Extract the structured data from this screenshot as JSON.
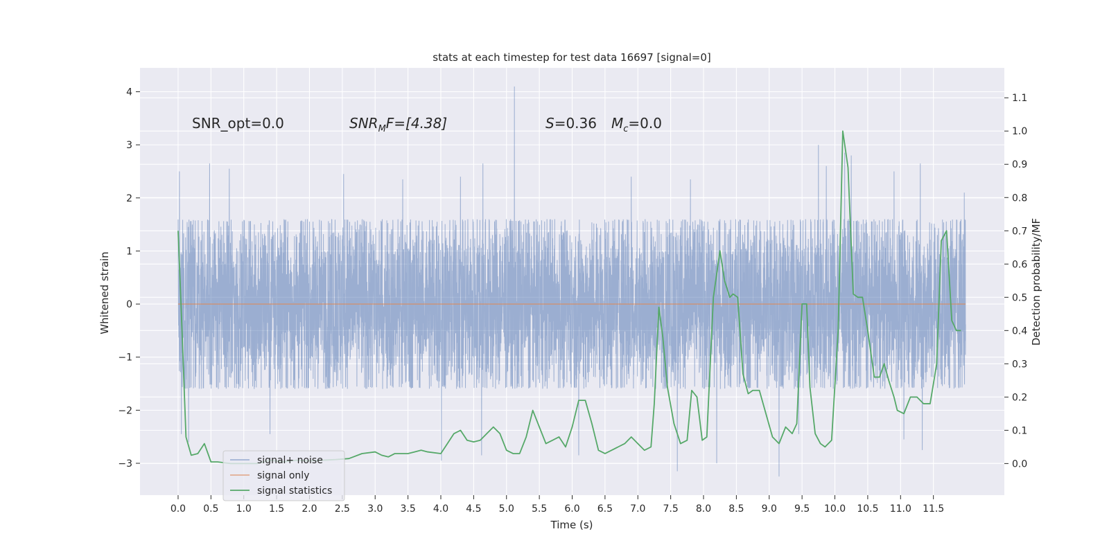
{
  "chart_data": {
    "type": "line",
    "title": "stats at each timestep for test data 16697 [signal=0]",
    "xlabel": "Time (s)",
    "ylabel_left": "Whitened strain",
    "ylabel_right": "Detection probability/MF",
    "xlim": [
      -0.58,
      12.58
    ],
    "ylim_left": [
      -3.6,
      4.45
    ],
    "ylim_right": [
      -0.095,
      1.19
    ],
    "x_ticks": [
      "0.0",
      "0.5",
      "1.0",
      "1.5",
      "2.0",
      "2.5",
      "3.0",
      "3.5",
      "4.0",
      "4.5",
      "5.0",
      "5.5",
      "6.0",
      "6.5",
      "7.0",
      "7.5",
      "8.0",
      "8.5",
      "9.0",
      "9.5",
      "10.0",
      "10.5",
      "11.0",
      "11.5"
    ],
    "x_tick_values": [
      0.0,
      0.5,
      1.0,
      1.5,
      2.0,
      2.5,
      3.0,
      3.5,
      4.0,
      4.5,
      5.0,
      5.5,
      6.0,
      6.5,
      7.0,
      7.5,
      8.0,
      8.5,
      9.0,
      9.5,
      10.0,
      10.5,
      11.0,
      11.5
    ],
    "y_ticks_left": [
      "4",
      "3",
      "2",
      "1",
      "0",
      "−1",
      "−2",
      "−3"
    ],
    "y_tick_values_left": [
      4,
      3,
      2,
      1,
      0,
      -1,
      -2,
      -3
    ],
    "y_ticks_right": [
      "1.1",
      "1.0",
      "0.9",
      "0.8",
      "0.7",
      "0.6",
      "0.5",
      "0.4",
      "0.3",
      "0.2",
      "0.1",
      "0.0"
    ],
    "y_tick_values_right": [
      1.1,
      1.0,
      0.9,
      0.8,
      0.7,
      0.6,
      0.5,
      0.4,
      0.3,
      0.2,
      0.1,
      0.0
    ],
    "annotations": [
      {
        "text": "SNR_opt=0.0",
        "x": 0.2,
        "y": 3.3
      },
      {
        "text": "SNR",
        "sub": "M",
        "suffix": "F=[4.38]",
        "x": 2.6,
        "y": 3.3
      },
      {
        "text": "S",
        "suffix": "=0.36",
        "x": 5.6,
        "y": 3.3
      },
      {
        "text": "M",
        "sub": "c",
        "suffix": "=0.0",
        "x": 6.6,
        "y": 3.3
      }
    ],
    "legend": {
      "position": "lower-left",
      "entries": [
        "signal+ noise",
        "signal only",
        "signal statistics"
      ]
    },
    "series": [
      {
        "name": "signal+ noise",
        "axis": "left",
        "color": "#4c72b0",
        "kind": "noise",
        "n_points": 6000,
        "t_range": [
          0.0,
          11.99
        ],
        "envelope": [
          -1.6,
          1.6
        ],
        "spikes": [
          {
            "t": 0.02,
            "v": 2.5
          },
          {
            "t": 0.05,
            "v": -2.45
          },
          {
            "t": 0.16,
            "v": -2.6
          },
          {
            "t": 0.48,
            "v": 2.65
          },
          {
            "t": 0.78,
            "v": 2.55
          },
          {
            "t": 1.4,
            "v": -2.45
          },
          {
            "t": 2.52,
            "v": 2.45
          },
          {
            "t": 3.42,
            "v": 2.35
          },
          {
            "t": 4.01,
            "v": -2.95
          },
          {
            "t": 4.3,
            "v": 2.4
          },
          {
            "t": 4.62,
            "v": -2.85
          },
          {
            "t": 4.64,
            "v": 2.65
          },
          {
            "t": 5.12,
            "v": 4.1
          },
          {
            "t": 6.1,
            "v": -2.85
          },
          {
            "t": 6.9,
            "v": 2.4
          },
          {
            "t": 7.6,
            "v": -3.15
          },
          {
            "t": 7.8,
            "v": 2.35
          },
          {
            "t": 8.2,
            "v": -3.0
          },
          {
            "t": 9.15,
            "v": -3.25
          },
          {
            "t": 9.45,
            "v": -2.45
          },
          {
            "t": 9.75,
            "v": 3.0
          },
          {
            "t": 9.87,
            "v": 2.6
          },
          {
            "t": 10.15,
            "v": 2.85
          },
          {
            "t": 10.25,
            "v": 2.8
          },
          {
            "t": 10.9,
            "v": 2.5
          },
          {
            "t": 11.05,
            "v": -2.55
          },
          {
            "t": 11.3,
            "v": 2.65
          },
          {
            "t": 11.33,
            "v": -2.75
          },
          {
            "t": 11.97,
            "v": 2.1
          }
        ]
      },
      {
        "name": "signal only",
        "axis": "left",
        "color": "#dd8452",
        "x": [
          0.0,
          11.99
        ],
        "y": [
          0.0,
          0.0
        ]
      },
      {
        "name": "signal statistics",
        "axis": "right",
        "color": "#55a868",
        "x": [
          0.0,
          0.05,
          0.12,
          0.2,
          0.3,
          0.4,
          0.5,
          0.6,
          0.8,
          1.0,
          1.2,
          1.4,
          1.6,
          1.8,
          2.0,
          2.2,
          2.4,
          2.6,
          2.8,
          3.0,
          3.1,
          3.2,
          3.3,
          3.4,
          3.5,
          3.6,
          3.7,
          3.8,
          4.0,
          4.1,
          4.2,
          4.3,
          4.4,
          4.5,
          4.6,
          4.7,
          4.8,
          4.9,
          5.0,
          5.1,
          5.2,
          5.3,
          5.4,
          5.5,
          5.6,
          5.7,
          5.8,
          5.9,
          6.0,
          6.1,
          6.2,
          6.3,
          6.4,
          6.5,
          6.6,
          6.7,
          6.8,
          6.9,
          7.0,
          7.1,
          7.2,
          7.25,
          7.32,
          7.38,
          7.45,
          7.55,
          7.65,
          7.75,
          7.82,
          7.9,
          7.98,
          8.05,
          8.15,
          8.25,
          8.32,
          8.4,
          8.45,
          8.52,
          8.6,
          8.68,
          8.75,
          8.85,
          8.95,
          9.05,
          9.15,
          9.25,
          9.35,
          9.42,
          9.5,
          9.57,
          9.62,
          9.7,
          9.78,
          9.85,
          9.95,
          10.05,
          10.12,
          10.2,
          10.28,
          10.35,
          10.42,
          10.5,
          10.6,
          10.68,
          10.75,
          10.82,
          10.9,
          10.95,
          11.05,
          11.15,
          11.25,
          11.35,
          11.45,
          11.55,
          11.62,
          11.7,
          11.78,
          11.85,
          11.92
        ],
        "y": [
          0.7,
          0.45,
          0.08,
          0.025,
          0.03,
          0.06,
          0.005,
          0.005,
          0.0,
          0.0,
          0.0,
          0.01,
          0.005,
          0.01,
          0.008,
          0.01,
          0.012,
          0.015,
          0.03,
          0.035,
          0.025,
          0.02,
          0.03,
          0.03,
          0.03,
          0.035,
          0.04,
          0.035,
          0.03,
          0.06,
          0.09,
          0.1,
          0.07,
          0.065,
          0.07,
          0.09,
          0.11,
          0.09,
          0.04,
          0.03,
          0.03,
          0.08,
          0.16,
          0.11,
          0.06,
          0.07,
          0.08,
          0.05,
          0.11,
          0.19,
          0.19,
          0.12,
          0.04,
          0.03,
          0.04,
          0.05,
          0.06,
          0.08,
          0.06,
          0.04,
          0.05,
          0.18,
          0.47,
          0.38,
          0.23,
          0.12,
          0.06,
          0.07,
          0.22,
          0.2,
          0.07,
          0.08,
          0.5,
          0.64,
          0.55,
          0.5,
          0.51,
          0.5,
          0.27,
          0.21,
          0.22,
          0.22,
          0.15,
          0.08,
          0.06,
          0.11,
          0.09,
          0.12,
          0.48,
          0.48,
          0.23,
          0.09,
          0.06,
          0.05,
          0.07,
          0.4,
          1.0,
          0.89,
          0.51,
          0.5,
          0.5,
          0.4,
          0.26,
          0.26,
          0.3,
          0.25,
          0.2,
          0.16,
          0.15,
          0.2,
          0.2,
          0.18,
          0.18,
          0.3,
          0.67,
          0.7,
          0.43,
          0.4,
          0.4
        ]
      }
    ]
  }
}
